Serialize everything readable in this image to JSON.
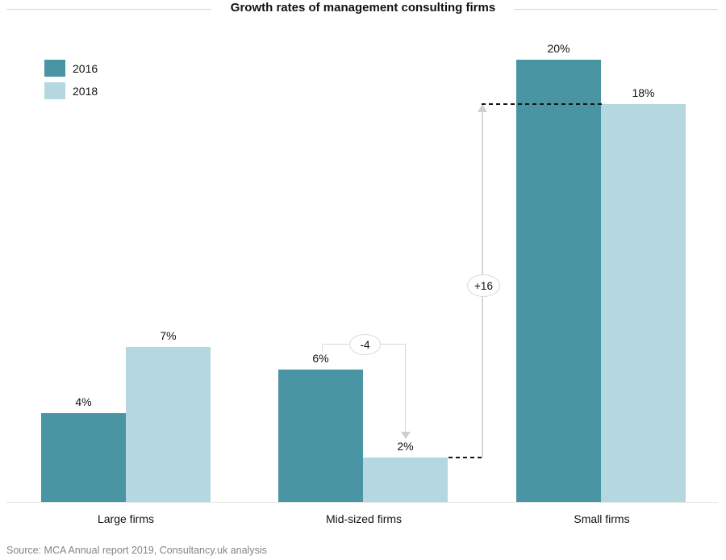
{
  "title": "Growth rates of management consulting firms",
  "legend": {
    "items": [
      {
        "label": "2016",
        "color": "#4a95a4"
      },
      {
        "label": "2018",
        "color": "#b5d8e0"
      }
    ]
  },
  "chart_data": {
    "type": "bar",
    "title": "Growth rates of management consulting firms",
    "categories": [
      "Large firms",
      "Mid-sized firms",
      "Small firms"
    ],
    "series": [
      {
        "name": "2016",
        "color": "#4a95a4",
        "values": [
          4,
          6,
          20
        ]
      },
      {
        "name": "2018",
        "color": "#b5d8e0",
        "values": [
          7,
          2,
          18
        ]
      }
    ],
    "value_suffix": "%",
    "value_labels": [
      "4%",
      "7%",
      "6%",
      "2%",
      "20%",
      "18%"
    ],
    "ylim": [
      0,
      22
    ],
    "grid": false,
    "legend_position": "top-left",
    "annotations": [
      {
        "label": "-4"
      },
      {
        "label": "+16"
      }
    ]
  },
  "source": "Source: MCA Annual report 2019, Consultancy.uk analysis"
}
